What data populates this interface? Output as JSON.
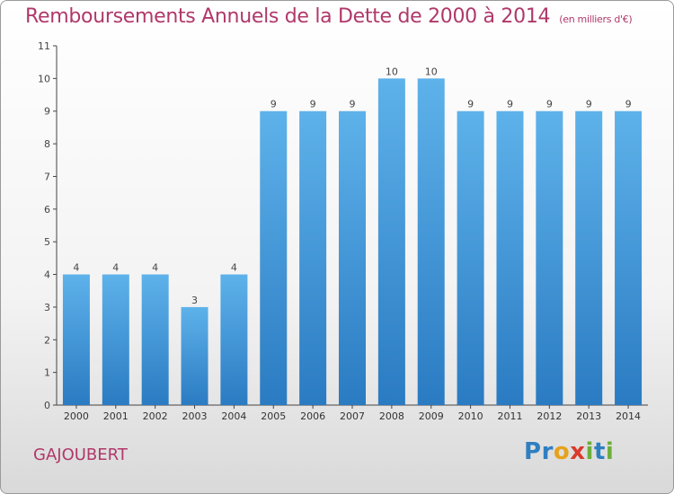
{
  "title": "Remboursements Annuels de la Dette de 2000 à 2014",
  "unit": "(en milliers d'€)",
  "commune": "GAJOUBERT",
  "logo": {
    "letters": [
      "P",
      "r",
      "o",
      "x",
      "i",
      "t",
      "i"
    ],
    "colors": [
      "#2e7fc1",
      "#2e7fc1",
      "#e6a21a",
      "#d93a2b",
      "#6cae3b",
      "#2e7fc1",
      "#6cae3b"
    ]
  },
  "chart_data": {
    "type": "bar",
    "categories": [
      "2000",
      "2001",
      "2002",
      "2003",
      "2004",
      "2005",
      "2006",
      "2007",
      "2008",
      "2009",
      "2010",
      "2011",
      "2012",
      "2013",
      "2014"
    ],
    "values": [
      4,
      4,
      4,
      3,
      4,
      9,
      9,
      9,
      10,
      10,
      9,
      9,
      9,
      9,
      9
    ],
    "data_labels": [
      "4",
      "4",
      "4",
      "3",
      "4",
      "9",
      "9",
      "9",
      "10",
      "10",
      "9",
      "9",
      "9",
      "9",
      "9"
    ],
    "y_ticks": [
      "0",
      "1",
      "2",
      "3",
      "4",
      "5",
      "6",
      "7",
      "8",
      "9",
      "10",
      "11"
    ],
    "ylim": [
      0,
      11
    ],
    "bar_color": "#4ba3e3",
    "bar_color_dark": "#2a7bc2",
    "grid": false
  }
}
